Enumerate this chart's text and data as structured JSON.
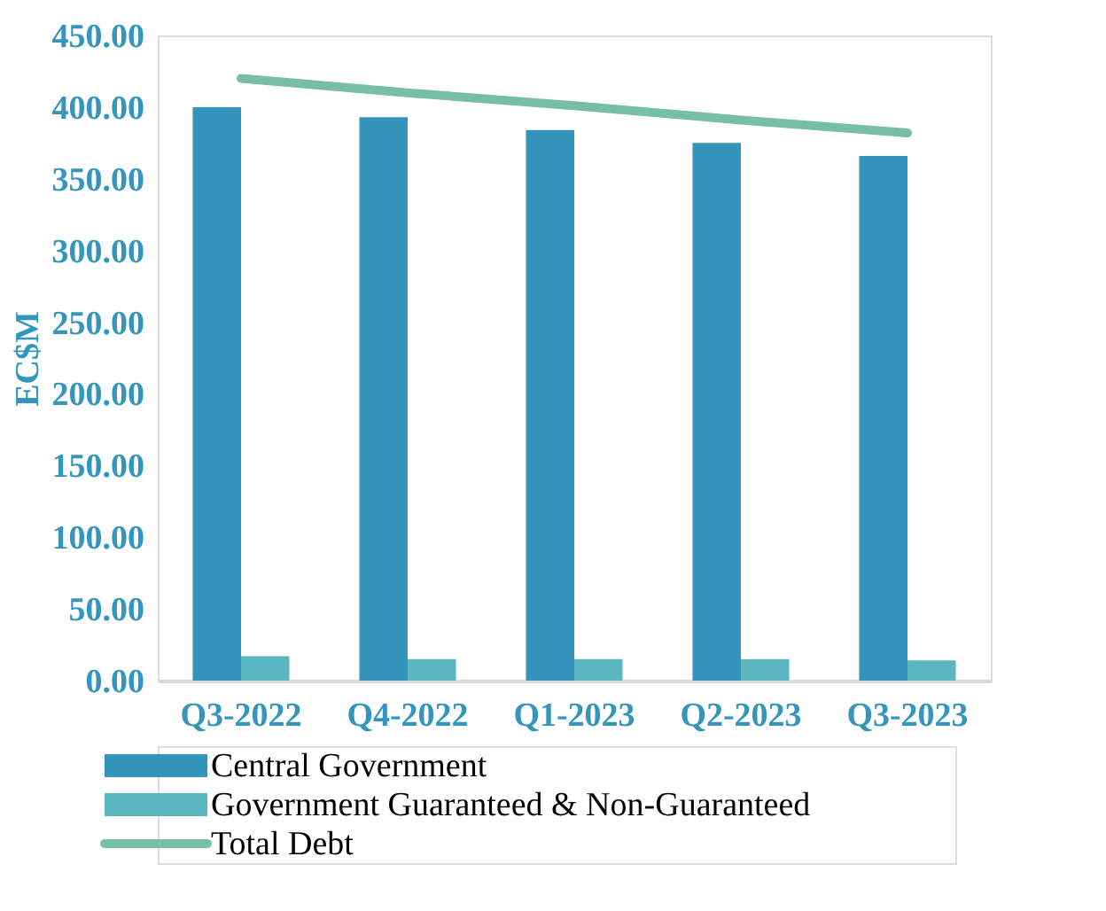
{
  "chart_data": {
    "type": "bar",
    "ylabel": "EC$M",
    "categories": [
      "Q3-2022",
      "Q4-2022",
      "Q1-2023",
      "Q2-2023",
      "Q3-2023"
    ],
    "series": [
      {
        "name": "Central Government",
        "color": "#3594bb",
        "values": [
          400,
          393,
          384,
          375,
          366
        ]
      },
      {
        "name": "Government Guaranteed & Non-Guaranteed",
        "color": "#5bb6c1",
        "values": [
          17,
          15,
          15,
          15,
          14
        ]
      },
      {
        "name": "Total Debt",
        "type": "line",
        "color": "#76bfa5",
        "values": [
          420,
          410,
          401,
          391,
          382
        ]
      }
    ],
    "ylim": [
      0,
      450
    ],
    "yticks": [
      {
        "value": 0,
        "label": "0.00"
      },
      {
        "value": 50,
        "label": "50.00"
      },
      {
        "value": 100,
        "label": "100.00"
      },
      {
        "value": 150,
        "label": "150.00"
      },
      {
        "value": 200,
        "label": "200.00"
      },
      {
        "value": 250,
        "label": "250.00"
      },
      {
        "value": 300,
        "label": "300.00"
      },
      {
        "value": 350,
        "label": "350.00"
      },
      {
        "value": 400,
        "label": "400.00"
      },
      {
        "value": 450,
        "label": "450.00"
      }
    ],
    "grid": false,
    "legend": "bottom"
  }
}
